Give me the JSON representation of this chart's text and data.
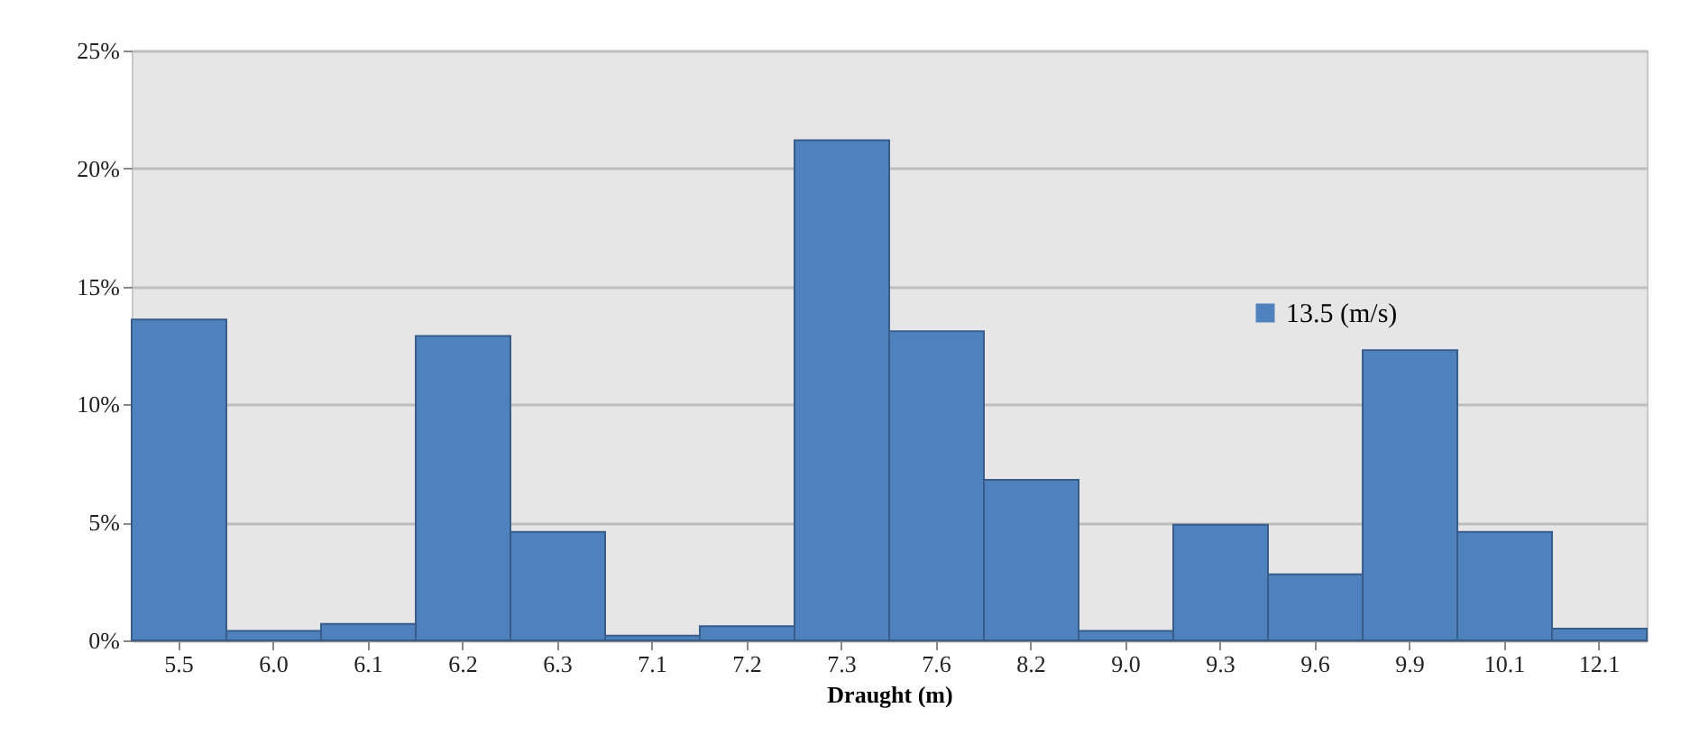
{
  "chart_data": {
    "type": "bar",
    "xlabel": "Draught (m)",
    "categories": [
      "5.5",
      "6.0",
      "6.1",
      "6.2",
      "6.3",
      "7.1",
      "7.2",
      "7.3",
      "7.6",
      "8.2",
      "9.0",
      "9.3",
      "9.6",
      "9.9",
      "10.1",
      "12.1"
    ],
    "series": [
      {
        "name": "13.5 (m/s)",
        "color": "#4f81bd",
        "values": [
          13.6,
          0.4,
          0.7,
          12.9,
          4.6,
          0.2,
          0.6,
          21.2,
          13.1,
          6.8,
          0.4,
          4.9,
          2.8,
          12.3,
          4.6,
          0.5
        ]
      }
    ],
    "ylim": [
      0,
      25
    ],
    "yticks": [
      {
        "value": 0,
        "label": "0%"
      },
      {
        "value": 5,
        "label": "5%"
      },
      {
        "value": 10,
        "label": "10%"
      },
      {
        "value": 15,
        "label": "15%"
      },
      {
        "value": 20,
        "label": "20%"
      },
      {
        "value": 25,
        "label": "25%"
      }
    ],
    "grid": "y",
    "legend": "top right"
  }
}
